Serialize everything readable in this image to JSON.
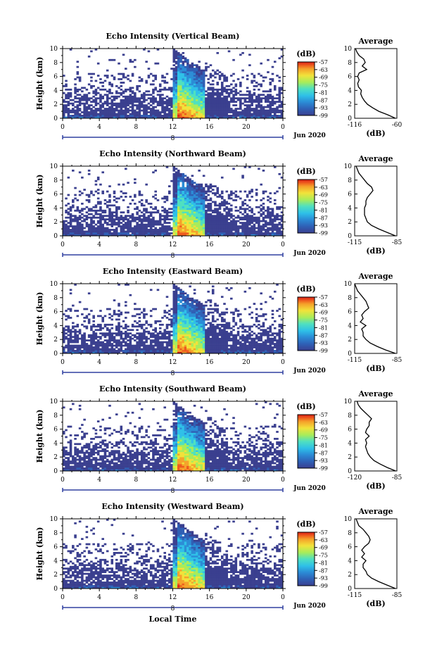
{
  "chart_data": [
    {
      "type": "heatmap",
      "title": "Echo Intensity (Vertical Beam)",
      "ylabel": "Height (km)",
      "xlim": [
        0,
        24
      ],
      "ylim": [
        0,
        10
      ],
      "x_ticks": [
        "0",
        "4",
        "8",
        "12",
        "16",
        "20",
        "0"
      ],
      "y_ticks": [
        "0",
        "2",
        "4",
        "6",
        "8",
        "10"
      ],
      "date_label": "Jun 2020",
      "date_marker": "8",
      "colorbar": {
        "unit": "(dB)",
        "ticks": [
          "-57",
          "-63",
          "-69",
          "-75",
          "-81",
          "-87",
          "-93",
          "-99"
        ],
        "range": [
          -99,
          -57
        ]
      },
      "profile": {
        "title": "Average",
        "xlabel": "(dB)",
        "xlim": [
          -116,
          -60
        ],
        "x_ticks": [
          "-116",
          "-60"
        ],
        "y_ticks": [
          "0",
          "2",
          "4",
          "6",
          "8",
          "10"
        ],
        "heights": [
          0,
          0.5,
          1,
          1.5,
          2,
          2.5,
          3,
          3.5,
          4,
          4.5,
          5,
          5.5,
          6,
          6.5,
          7,
          7.5,
          8,
          8.5,
          9,
          9.5,
          10
        ],
        "values": [
          -62,
          -72,
          -84,
          -92,
          -99,
          -103,
          -106,
          -108,
          -107,
          -111,
          -112,
          -110,
          -112,
          -110,
          -100,
          -106,
          -102,
          -104,
          -110,
          -113,
          -115
        ]
      }
    },
    {
      "type": "heatmap",
      "title": "Echo Intensity (Northward Beam)",
      "ylabel": "Height (km)",
      "xlim": [
        0,
        24
      ],
      "ylim": [
        0,
        10
      ],
      "x_ticks": [
        "0",
        "4",
        "8",
        "12",
        "16",
        "20",
        "0"
      ],
      "y_ticks": [
        "0",
        "2",
        "4",
        "6",
        "8",
        "10"
      ],
      "date_label": "Jun 2020",
      "date_marker": "8",
      "colorbar": {
        "unit": "(dB)",
        "ticks": [
          "-57",
          "-63",
          "-69",
          "-75",
          "-81",
          "-87",
          "-93",
          "-99"
        ],
        "range": [
          -99,
          -57
        ]
      },
      "profile": {
        "title": "Average",
        "xlabel": "(dB)",
        "xlim": [
          -115,
          -85
        ],
        "x_ticks": [
          "-115",
          "-85"
        ],
        "y_ticks": [
          "0",
          "2",
          "4",
          "6",
          "8",
          "10"
        ],
        "heights": [
          0,
          0.5,
          1,
          1.5,
          2,
          2.5,
          3,
          3.5,
          4,
          4.5,
          5,
          5.5,
          6,
          6.5,
          7,
          7.5,
          8,
          8.5,
          9,
          9.5,
          10
        ],
        "values": [
          -86,
          -92,
          -98,
          -103,
          -106,
          -107,
          -108,
          -108,
          -108,
          -107,
          -107,
          -106,
          -104,
          -102,
          -103,
          -106,
          -108,
          -110,
          -112,
          -113,
          -114
        ]
      }
    },
    {
      "type": "heatmap",
      "title": "Echo Intensity (Eastward Beam)",
      "ylabel": "Height (km)",
      "xlim": [
        0,
        24
      ],
      "ylim": [
        0,
        10
      ],
      "x_ticks": [
        "0",
        "4",
        "8",
        "12",
        "16",
        "20",
        "0"
      ],
      "y_ticks": [
        "0",
        "2",
        "4",
        "6",
        "8",
        "10"
      ],
      "date_label": "Jun 2020",
      "date_marker": "8",
      "colorbar": {
        "unit": "(dB)",
        "ticks": [
          "-57",
          "-63",
          "-69",
          "-75",
          "-81",
          "-87",
          "-93",
          "-99"
        ],
        "range": [
          -99,
          -57
        ]
      },
      "profile": {
        "title": "Average",
        "xlabel": "(dB)",
        "xlim": [
          -115,
          -85
        ],
        "x_ticks": [
          "-115",
          "-85"
        ],
        "y_ticks": [
          "0",
          "2",
          "4",
          "6",
          "8",
          "10"
        ],
        "heights": [
          0,
          0.5,
          1,
          1.5,
          2,
          2.5,
          3,
          3.5,
          4,
          4.5,
          5,
          5.5,
          6,
          6.5,
          7,
          7.5,
          8,
          8.5,
          9,
          9.5,
          10
        ],
        "values": [
          -86,
          -93,
          -99,
          -104,
          -107,
          -109,
          -109,
          -110,
          -107,
          -111,
          -109,
          -110,
          -108,
          -105,
          -106,
          -107,
          -109,
          -111,
          -113,
          -114,
          -115
        ]
      }
    },
    {
      "type": "heatmap",
      "title": "Echo Intensity (Southward Beam)",
      "ylabel": "Height (km)",
      "xlim": [
        0,
        24
      ],
      "ylim": [
        0,
        10
      ],
      "x_ticks": [
        "0",
        "4",
        "8",
        "12",
        "16",
        "20",
        "0"
      ],
      "y_ticks": [
        "0",
        "2",
        "4",
        "6",
        "8",
        "10"
      ],
      "date_label": "Jun 2020",
      "date_marker": "8",
      "colorbar": {
        "unit": "(dB)",
        "ticks": [
          "-57",
          "-63",
          "-69",
          "-75",
          "-81",
          "-87",
          "-93",
          "-99"
        ],
        "range": [
          -99,
          -57
        ]
      },
      "profile": {
        "title": "Average",
        "xlabel": "(dB)",
        "xlim": [
          -120,
          -85
        ],
        "x_ticks": [
          "-120",
          "-85"
        ],
        "y_ticks": [
          "0",
          "2",
          "4",
          "6",
          "8",
          "10"
        ],
        "heights": [
          0,
          0.5,
          1,
          1.5,
          2,
          2.5,
          3,
          3.5,
          4,
          4.5,
          5,
          5.5,
          6,
          6.5,
          7,
          7.5,
          8,
          8.5,
          9,
          9.5,
          10
        ],
        "values": [
          -86,
          -93,
          -99,
          -104,
          -107,
          -109,
          -110,
          -111,
          -110,
          -111,
          -108,
          -111,
          -110,
          -108,
          -108,
          -106,
          -109,
          -112,
          -115,
          -117,
          -118
        ]
      }
    },
    {
      "type": "heatmap",
      "title": "Echo Intensity (Westward Beam)",
      "ylabel": "Height (km)",
      "xlabel": "Local Time",
      "xlim": [
        0,
        24
      ],
      "ylim": [
        0,
        10
      ],
      "x_ticks": [
        "0",
        "4",
        "8",
        "12",
        "16",
        "20",
        "0"
      ],
      "y_ticks": [
        "0",
        "2",
        "4",
        "6",
        "8",
        "10"
      ],
      "date_label": "Jun 2020",
      "date_marker": "8",
      "colorbar": {
        "unit": "(dB)",
        "ticks": [
          "-57",
          "-63",
          "-69",
          "-75",
          "-81",
          "-87",
          "-93",
          "-99"
        ],
        "range": [
          -99,
          -57
        ]
      },
      "profile": {
        "title": "Average",
        "xlabel": "(dB)",
        "xlim": [
          -115,
          -85
        ],
        "x_ticks": [
          "-115",
          "-85"
        ],
        "y_ticks": [
          "0",
          "2",
          "4",
          "6",
          "8",
          "10"
        ],
        "heights": [
          0,
          0.5,
          1,
          1.5,
          2,
          2.5,
          3,
          3.5,
          4,
          4.5,
          5,
          5.5,
          6,
          6.5,
          7,
          7.5,
          8,
          8.5,
          9,
          9.5,
          10
        ],
        "values": [
          -86,
          -92,
          -98,
          -103,
          -106,
          -107,
          -109,
          -109,
          -107,
          -110,
          -108,
          -110,
          -108,
          -105,
          -104,
          -105,
          -107,
          -109,
          -112,
          -113,
          -114
        ]
      }
    }
  ],
  "colors": {
    "colormap": [
      "#3a3f8f",
      "#2f5fb5",
      "#2b8cd6",
      "#2ec0e8",
      "#4fe0c0",
      "#a8ec5a",
      "#f2e23a",
      "#f5a22a",
      "#ee5a1e",
      "#d81e16"
    ],
    "axis": "#000000",
    "date_axis": "#3040a0"
  }
}
